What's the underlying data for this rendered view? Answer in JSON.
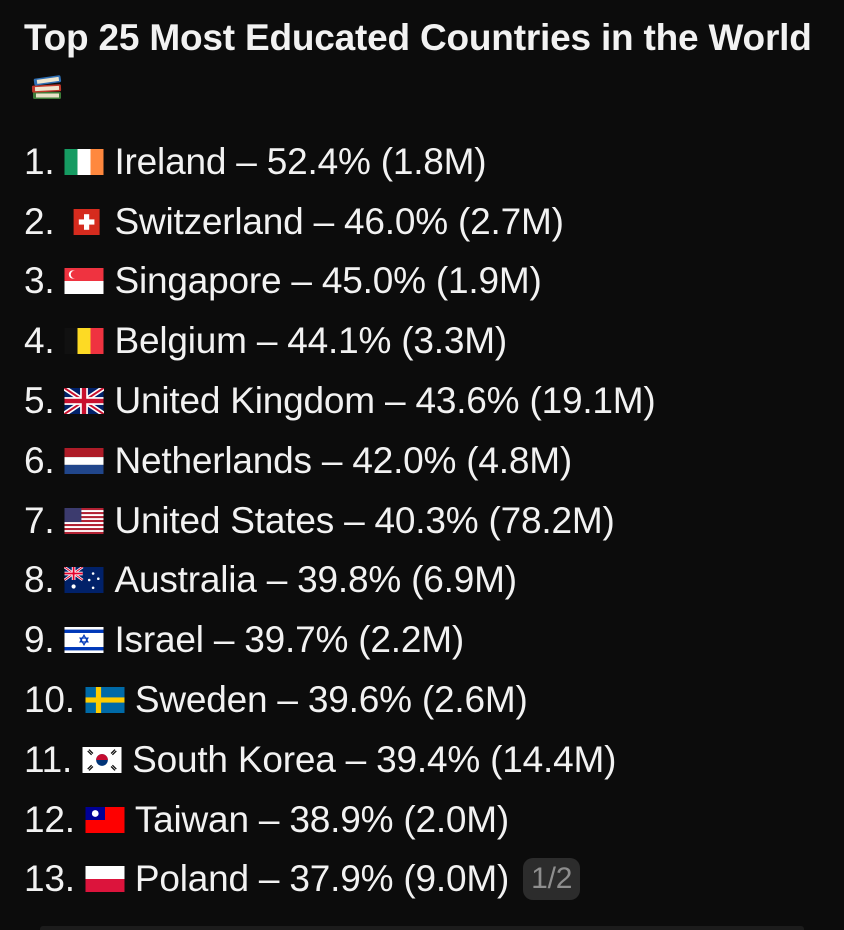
{
  "post": {
    "title": "Top 25 Most Educated Countries in the World",
    "title_icon": "books-icon",
    "items": [
      {
        "rank": "1.",
        "flag": "ireland-flag-icon",
        "text": "Ireland – 52.4% (1.8M)"
      },
      {
        "rank": "2.",
        "flag": "switzerland-flag-icon",
        "text": "Switzerland – 46.0% (2.7M)"
      },
      {
        "rank": "3.",
        "flag": "singapore-flag-icon",
        "text": "Singapore – 45.0% (1.9M)"
      },
      {
        "rank": "4.",
        "flag": "belgium-flag-icon",
        "text": "Belgium – 44.1% (3.3M)"
      },
      {
        "rank": "5.",
        "flag": "united-kingdom-flag-icon",
        "text": "United Kingdom – 43.6% (19.1M)"
      },
      {
        "rank": "6.",
        "flag": "netherlands-flag-icon",
        "text": "Netherlands – 42.0% (4.8M)"
      },
      {
        "rank": "7.",
        "flag": "united-states-flag-icon",
        "text": "United States – 40.3% (78.2M)"
      },
      {
        "rank": "8.",
        "flag": "australia-flag-icon",
        "text": "Australia – 39.8% (6.9M)"
      },
      {
        "rank": "9.",
        "flag": "israel-flag-icon",
        "text": "Israel – 39.7% (2.2M)"
      },
      {
        "rank": "10.",
        "flag": "sweden-flag-icon",
        "text": "Sweden – 39.6% (2.6M)"
      },
      {
        "rank": "11.",
        "flag": "south-korea-flag-icon",
        "text": "South Korea – 39.4% (14.4M)"
      },
      {
        "rank": "12.",
        "flag": "taiwan-flag-icon",
        "text": "Taiwan – 38.9% (2.0M)"
      },
      {
        "rank": "13.",
        "flag": "poland-flag-icon",
        "text": "Poland – 37.9% (9.0M)"
      }
    ],
    "page_indicator": "1/2"
  },
  "colors": {
    "background": "#0c0c0c",
    "text": "#f2f2f2",
    "badge_bg": "#2c2c2c",
    "badge_text": "#8e8e8e"
  }
}
